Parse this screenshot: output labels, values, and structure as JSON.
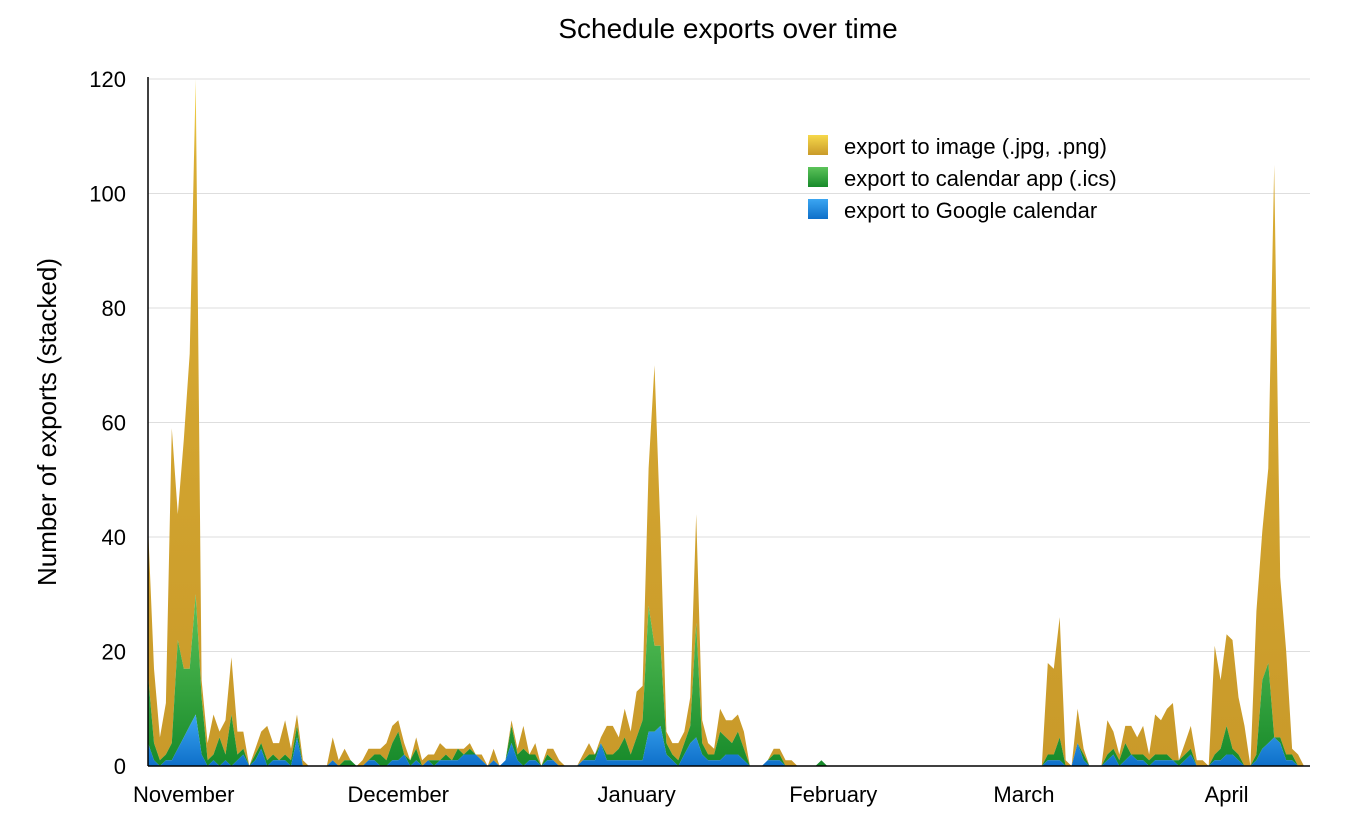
{
  "chart_data": {
    "type": "area",
    "stacked": true,
    "title": "Schedule exports over time",
    "xlabel": "",
    "ylabel": "Number of exports (stacked)",
    "ylim": [
      0,
      120
    ],
    "yticks": [
      0,
      20,
      40,
      60,
      80,
      100,
      120
    ],
    "xticks": [
      "November",
      "December",
      "January",
      "February",
      "March",
      "April"
    ],
    "xtick_days": [
      6,
      42,
      82,
      115,
      147,
      181
    ],
    "grid": "horizontal",
    "legend_position": "top-right",
    "series": [
      {
        "name": "export to Google calendar",
        "color": "#1a7fd8",
        "values": [
          4,
          1,
          0,
          1,
          1,
          3,
          5,
          7,
          9,
          2,
          0,
          1,
          0,
          1,
          0,
          1,
          2,
          0,
          1,
          3,
          0,
          1,
          1,
          1,
          0,
          5,
          0,
          0,
          0,
          0,
          0,
          1,
          0,
          0,
          0,
          0,
          0,
          1,
          1,
          0,
          0,
          1,
          1,
          2,
          0,
          1,
          0,
          1,
          0,
          1,
          1,
          1,
          1,
          2,
          2,
          2,
          1,
          0,
          1,
          0,
          1,
          4,
          1,
          0,
          1,
          1,
          0,
          1,
          1,
          0,
          0,
          0,
          0,
          1,
          1,
          1,
          4,
          1,
          1,
          1,
          1,
          1,
          1,
          1,
          6,
          6,
          7,
          2,
          1,
          0,
          2,
          4,
          5,
          2,
          1,
          1,
          1,
          2,
          2,
          2,
          1,
          0,
          0,
          0,
          1,
          1,
          1,
          0,
          0,
          0,
          0,
          0,
          0,
          0,
          0,
          0,
          0,
          0,
          0,
          0,
          0,
          0,
          0,
          0,
          0,
          0,
          0,
          0,
          0,
          0,
          0,
          0,
          0,
          0,
          0,
          0,
          0,
          0,
          0,
          0,
          0,
          0,
          0,
          0,
          0,
          0,
          0,
          0,
          0,
          0,
          0,
          1,
          1,
          1,
          0,
          0,
          4,
          1,
          0,
          0,
          0,
          1,
          2,
          0,
          1,
          2,
          1,
          1,
          0,
          1,
          1,
          1,
          1,
          0,
          1,
          2,
          0,
          0,
          0,
          1,
          1,
          2,
          2,
          1,
          0,
          0,
          1,
          3,
          4,
          5,
          4,
          1,
          1,
          0
        ]
      },
      {
        "name": "export to calendar app (.ics)",
        "color": "#2ea03a",
        "values": [
          12,
          3,
          1,
          1,
          3,
          19,
          12,
          10,
          21,
          10,
          1,
          1,
          5,
          1,
          9,
          1,
          1,
          0,
          1,
          1,
          1,
          1,
          0,
          1,
          1,
          2,
          0,
          0,
          0,
          0,
          0,
          0,
          0,
          1,
          1,
          0,
          0,
          0,
          1,
          2,
          1,
          3,
          5,
          0,
          1,
          2,
          0,
          0,
          1,
          0,
          1,
          0,
          2,
          0,
          1,
          0,
          0,
          0,
          0,
          0,
          0,
          3,
          1,
          3,
          1,
          1,
          0,
          1,
          0,
          0,
          0,
          0,
          0,
          0,
          1,
          1,
          0,
          1,
          1,
          2,
          4,
          1,
          4,
          7,
          22,
          15,
          14,
          2,
          1,
          1,
          2,
          3,
          20,
          2,
          1,
          1,
          5,
          3,
          2,
          4,
          2,
          0,
          0,
          0,
          0,
          1,
          1,
          0,
          0,
          0,
          0,
          0,
          0,
          1,
          0,
          0,
          0,
          0,
          0,
          0,
          0,
          0,
          0,
          0,
          0,
          0,
          0,
          0,
          0,
          0,
          0,
          0,
          0,
          0,
          0,
          0,
          0,
          0,
          0,
          0,
          0,
          0,
          0,
          0,
          0,
          0,
          0,
          0,
          0,
          0,
          0,
          1,
          1,
          4,
          0,
          0,
          0,
          1,
          0,
          0,
          0,
          1,
          1,
          1,
          3,
          0,
          1,
          1,
          1,
          1,
          1,
          1,
          0,
          1,
          1,
          1,
          0,
          0,
          0,
          1,
          2,
          5,
          1,
          1,
          0,
          0,
          1,
          12,
          14,
          0,
          1,
          1,
          1,
          0
        ]
      },
      {
        "name": "export to image (.jpg, .png)",
        "color": "#d8a82e",
        "values": [
          26,
          13,
          4,
          9,
          55,
          22,
          40,
          55,
          90,
          3,
          3,
          7,
          1,
          6,
          10,
          4,
          3,
          0,
          1,
          2,
          6,
          2,
          3,
          6,
          2,
          2,
          1,
          0,
          0,
          0,
          0,
          4,
          1,
          2,
          0,
          0,
          1,
          2,
          1,
          1,
          3,
          3,
          2,
          2,
          0,
          2,
          1,
          1,
          1,
          3,
          1,
          2,
          0,
          1,
          1,
          0,
          1,
          0,
          2,
          0,
          0,
          1,
          1,
          4,
          0,
          2,
          0,
          1,
          2,
          1,
          0,
          0,
          0,
          1,
          2,
          0,
          1,
          5,
          5,
          2,
          5,
          4,
          8,
          6,
          24,
          49,
          20,
          2,
          2,
          3,
          2,
          5,
          19,
          4,
          2,
          1,
          4,
          3,
          4,
          3,
          3,
          0,
          0,
          0,
          0,
          1,
          1,
          1,
          1,
          0,
          0,
          0,
          0,
          0,
          0,
          0,
          0,
          0,
          0,
          0,
          0,
          0,
          0,
          0,
          0,
          0,
          0,
          0,
          0,
          0,
          0,
          0,
          0,
          0,
          0,
          0,
          0,
          0,
          0,
          0,
          0,
          0,
          0,
          0,
          0,
          0,
          0,
          0,
          0,
          0,
          0,
          16,
          15,
          21,
          1,
          0,
          6,
          1,
          0,
          0,
          0,
          6,
          3,
          1,
          3,
          5,
          3,
          5,
          1,
          7,
          6,
          8,
          10,
          0,
          2,
          4,
          1,
          1,
          0,
          19,
          12,
          16,
          19,
          10,
          7,
          0,
          25,
          26,
          34,
          100,
          28,
          18,
          1,
          2
        ]
      }
    ],
    "day_count": 196
  }
}
